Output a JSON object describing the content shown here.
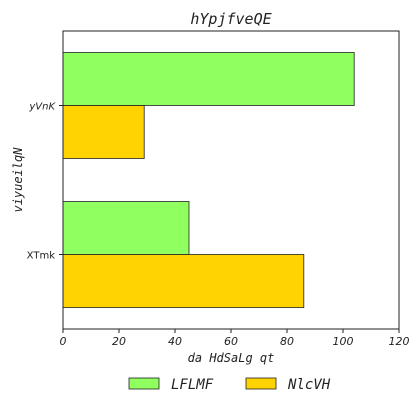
{
  "chart_data": {
    "type": "bar",
    "orientation": "horizontal",
    "title": "hYpjfveQE",
    "xlabel": "da HdSaLg qt",
    "ylabel": "viyueilqN",
    "categories": [
      "yVnK",
      "XTmk"
    ],
    "series": [
      {
        "name": "LFLMF",
        "values": [
          104,
          45
        ],
        "color": "#90ff60"
      },
      {
        "name": "NlcVH",
        "values": [
          29,
          86
        ],
        "color": "#ffd300"
      }
    ],
    "xlim": [
      0,
      120
    ],
    "xticks": [
      0,
      20,
      40,
      60,
      80,
      100,
      120
    ],
    "grid": false,
    "legend_position": "bottom-center"
  }
}
